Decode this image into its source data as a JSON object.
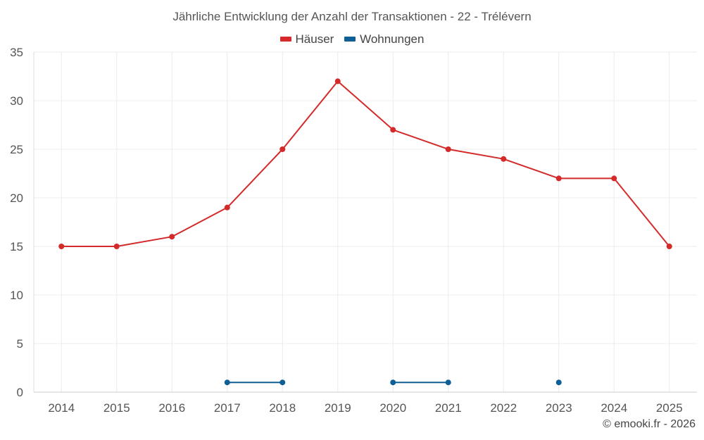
{
  "chart_data": {
    "type": "line",
    "title": "Jährliche Entwicklung der Anzahl der Transaktionen - 22 - Trélévern",
    "categories": [
      "2014",
      "2015",
      "2016",
      "2017",
      "2018",
      "2019",
      "2020",
      "2021",
      "2022",
      "2023",
      "2024",
      "2025"
    ],
    "yticks": [
      0,
      5,
      10,
      15,
      20,
      25,
      30,
      35
    ],
    "ylim": [
      0,
      35
    ],
    "grid": true,
    "legend_position": "top-center",
    "series": [
      {
        "name": "Häuser",
        "color": "#d42a2a",
        "values": [
          15,
          15,
          16,
          19,
          25,
          32,
          27,
          25,
          24,
          22,
          22,
          15
        ]
      },
      {
        "name": "Wohnungen",
        "color": "#0e5f96",
        "values": [
          null,
          null,
          null,
          1,
          1,
          null,
          1,
          1,
          null,
          1,
          null,
          null
        ]
      }
    ]
  },
  "credit": "© emooki.fr - 2026"
}
